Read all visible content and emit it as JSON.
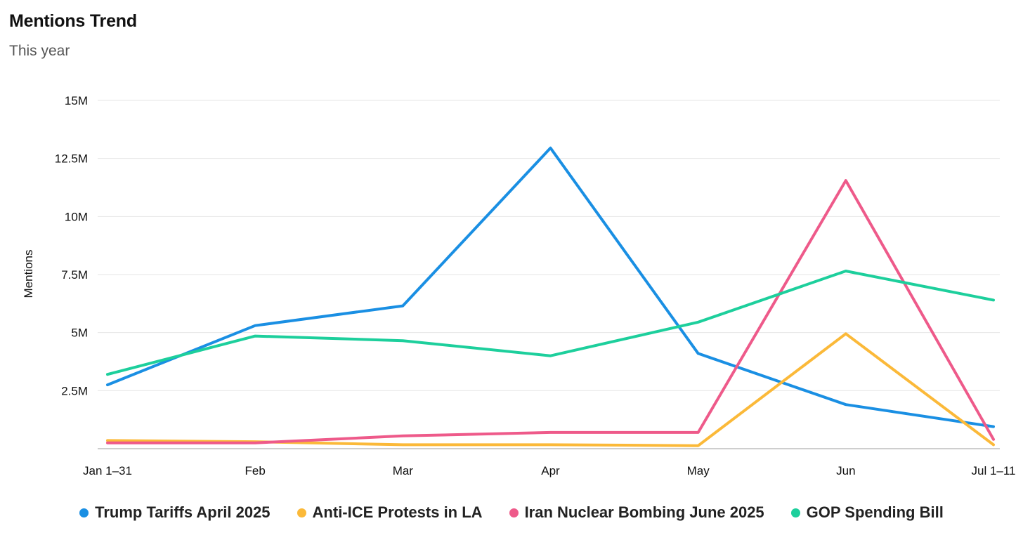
{
  "header": {
    "title": "Mentions Trend",
    "subtitle": "This year"
  },
  "chart_data": {
    "type": "line",
    "title": "Mentions Trend",
    "subtitle": "This year",
    "xlabel": "",
    "ylabel": "Mentions",
    "categories": [
      "Jan 1–31",
      "Feb",
      "Mar",
      "Apr",
      "May",
      "Jun",
      "Jul 1–11"
    ],
    "ylim": [
      0,
      15000000
    ],
    "yticks": [
      {
        "value": 2500000,
        "label": "2.5M"
      },
      {
        "value": 5000000,
        "label": "5M"
      },
      {
        "value": 7500000,
        "label": "7.5M"
      },
      {
        "value": 10000000,
        "label": "10M"
      },
      {
        "value": 12500000,
        "label": "12.5M"
      },
      {
        "value": 15000000,
        "label": "15M"
      }
    ],
    "grid": true,
    "legend_position": "bottom",
    "series": [
      {
        "name": "Trump Tariffs April 2025",
        "color": "#1a8fe3",
        "values": [
          2750000,
          5300000,
          6150000,
          12950000,
          4100000,
          1900000,
          950000
        ]
      },
      {
        "name": "Anti-ICE Protests in LA",
        "color": "#fbb939",
        "values": [
          350000,
          300000,
          170000,
          170000,
          130000,
          4950000,
          170000
        ]
      },
      {
        "name": "Iran Nuclear Bombing June 2025",
        "color": "#ee5a8a",
        "values": [
          250000,
          250000,
          550000,
          700000,
          700000,
          11550000,
          400000
        ]
      },
      {
        "name": "GOP Spending Bill",
        "color": "#1dcf9c",
        "values": [
          3200000,
          4850000,
          4650000,
          4000000,
          5450000,
          7650000,
          6400000
        ]
      }
    ]
  }
}
